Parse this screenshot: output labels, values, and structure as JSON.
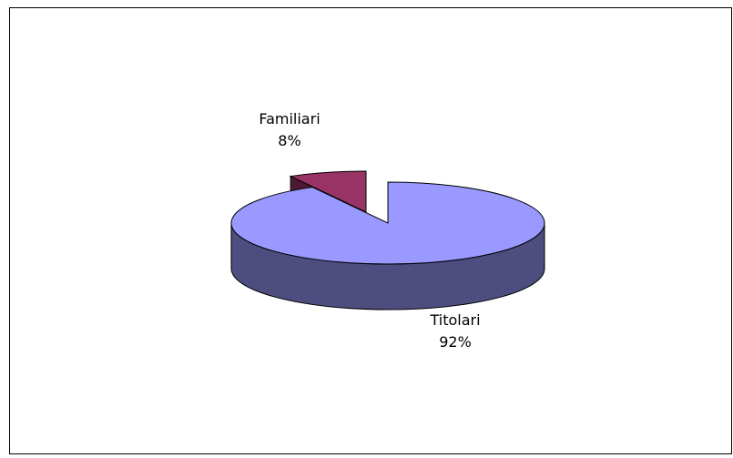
{
  "chart_data": {
    "type": "pie",
    "categories": [
      "Titolari",
      "Familiari"
    ],
    "values": [
      92,
      8
    ],
    "value_labels": [
      "92%",
      "8%"
    ],
    "colors": [
      "#9999ff",
      "#993366"
    ]
  }
}
